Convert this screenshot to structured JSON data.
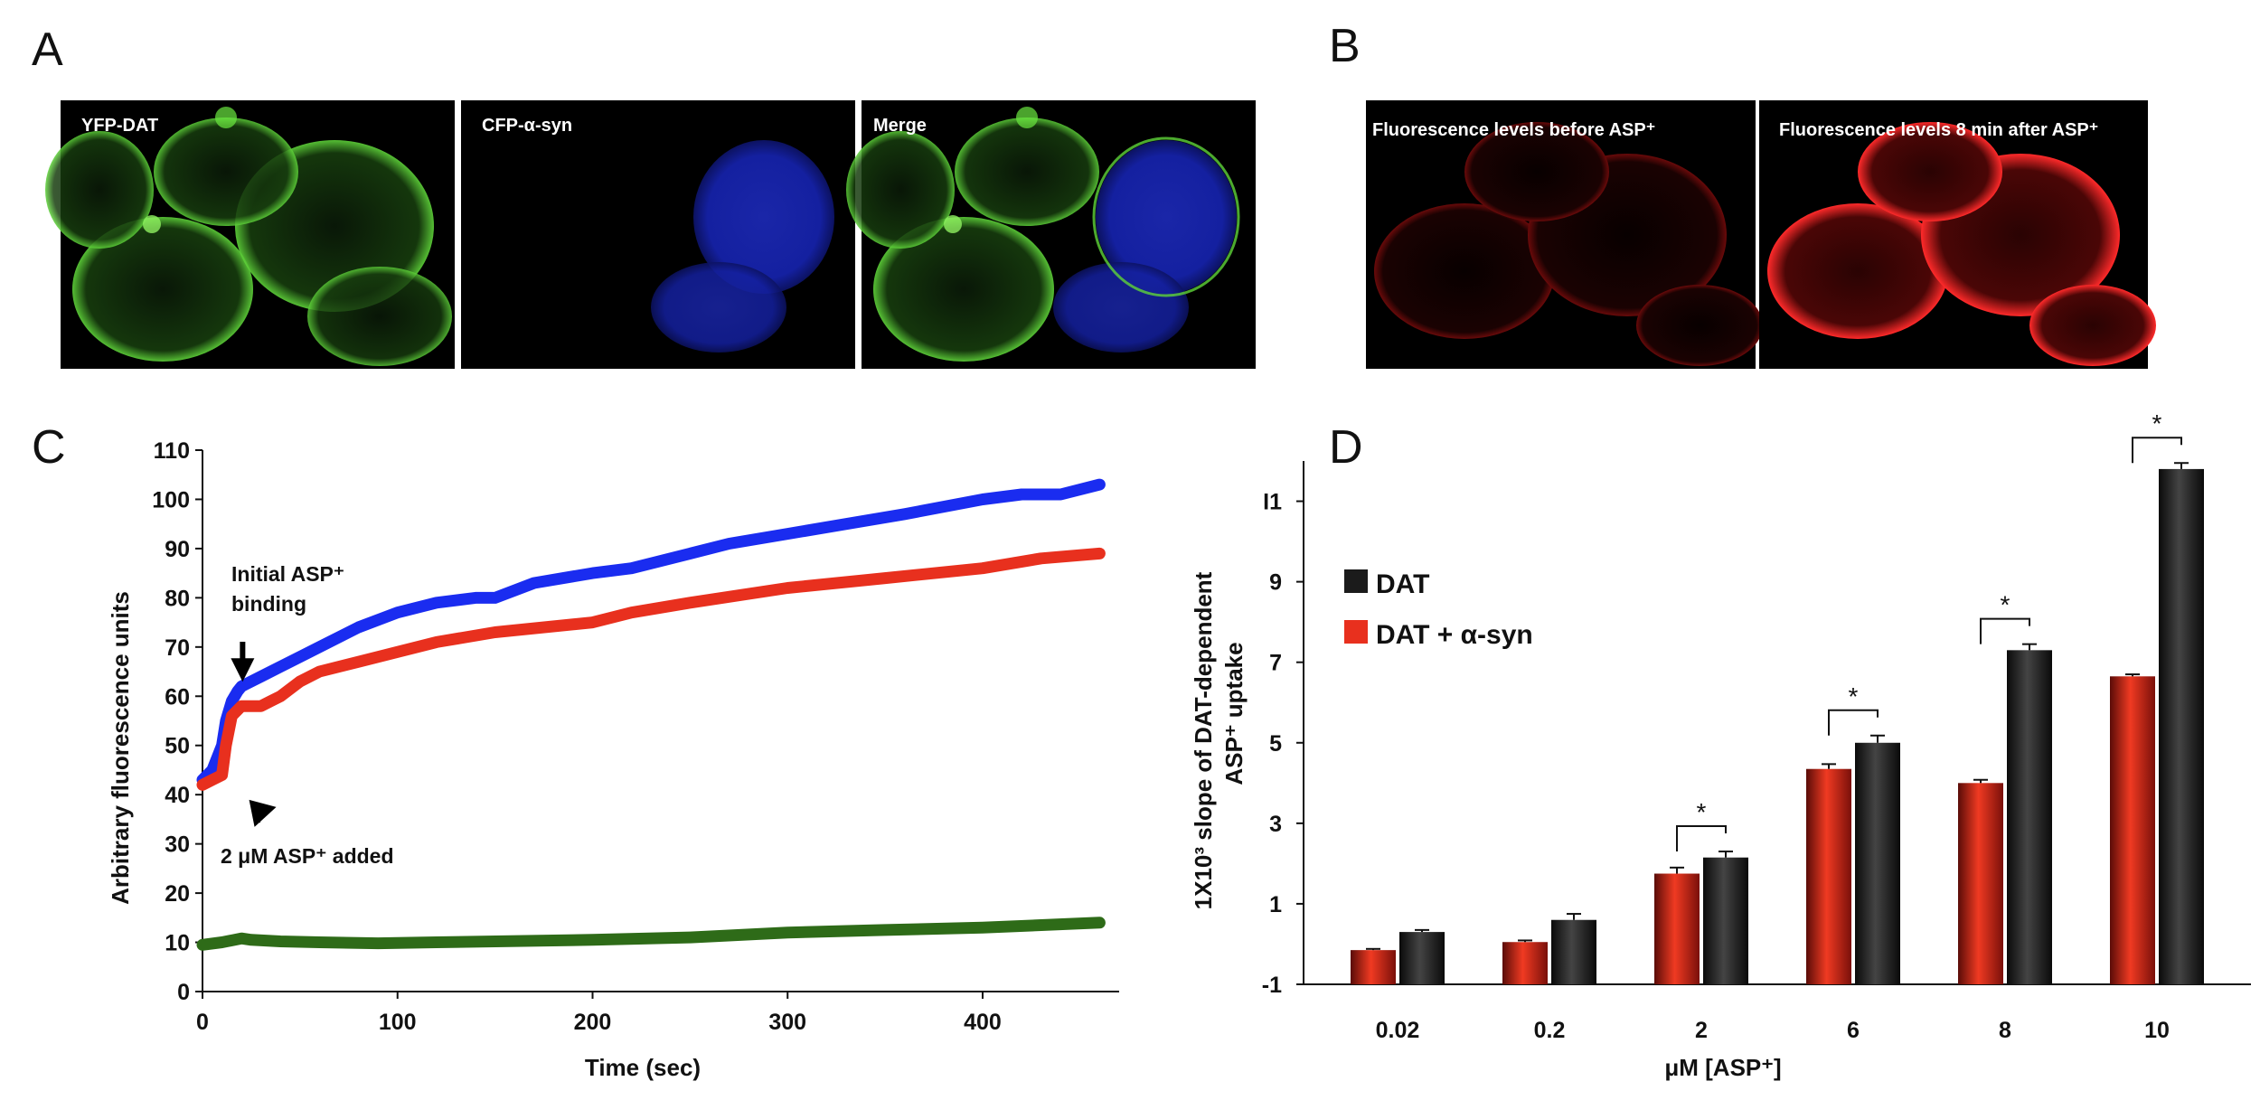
{
  "panels": {
    "a": {
      "letter": "A",
      "images": [
        {
          "label": "YFP-DAT",
          "channel": "green"
        },
        {
          "label": "CFP-α-syn",
          "channel": "blue"
        },
        {
          "label": "Merge",
          "channel": "merge"
        }
      ]
    },
    "b": {
      "letter": "B",
      "images": [
        {
          "label": "Fluorescence levels before ASP⁺",
          "channel": "red-dim"
        },
        {
          "label": "Fluorescence levels 8 min after ASP⁺",
          "channel": "red-bright"
        }
      ]
    },
    "c": {
      "letter": "C"
    },
    "d": {
      "letter": "D"
    }
  },
  "chart_data": [
    {
      "id": "C",
      "type": "line",
      "xlabel": "Time (sec)",
      "ylabel": "Arbitrary fluorescence units",
      "xlim": [
        0,
        470
      ],
      "ylim": [
        0,
        110
      ],
      "xticks": [
        0,
        100,
        200,
        300,
        400
      ],
      "yticks": [
        0,
        10,
        20,
        30,
        40,
        50,
        60,
        70,
        80,
        90,
        100,
        110
      ],
      "grid": false,
      "series": [
        {
          "color": "#1a2cf0",
          "x": [
            0,
            5,
            10,
            12,
            15,
            18,
            20,
            25,
            30,
            40,
            50,
            60,
            80,
            100,
            120,
            140,
            150,
            170,
            200,
            220,
            250,
            270,
            300,
            330,
            360,
            400,
            420,
            440,
            460
          ],
          "y": [
            43,
            45,
            50,
            55,
            59,
            61,
            62,
            63,
            64,
            66,
            68,
            70,
            74,
            77,
            79,
            80,
            80,
            83,
            85,
            86,
            89,
            91,
            93,
            95,
            97,
            100,
            101,
            101,
            103
          ]
        },
        {
          "color": "#e8301e",
          "x": [
            0,
            5,
            10,
            12,
            15,
            20,
            25,
            30,
            35,
            40,
            50,
            60,
            80,
            100,
            120,
            150,
            200,
            220,
            250,
            300,
            350,
            400,
            430,
            460
          ],
          "y": [
            42,
            43,
            44,
            50,
            56,
            58,
            58,
            58,
            59,
            60,
            63,
            65,
            67,
            69,
            71,
            73,
            75,
            77,
            79,
            82,
            84,
            86,
            88,
            89
          ]
        },
        {
          "color": "#2e6b18",
          "x": [
            0,
            10,
            20,
            25,
            40,
            60,
            90,
            120,
            200,
            250,
            300,
            350,
            400,
            430,
            460
          ],
          "y": [
            9.5,
            10,
            10.8,
            10.5,
            10.2,
            10,
            9.8,
            10,
            10.5,
            11,
            12,
            12.5,
            13,
            13.5,
            14
          ]
        }
      ],
      "annotations": [
        {
          "lines": [
            "Initial ASP⁺",
            "binding"
          ],
          "x": 15,
          "y": 60
        },
        {
          "lines": [
            "2 μM ASP⁺ added"
          ],
          "x": 10,
          "y": 43
        }
      ]
    },
    {
      "id": "D",
      "type": "bar",
      "categories": [
        "0.02",
        "0.2",
        "2",
        "6",
        "8",
        "10"
      ],
      "xlabel": "μM [ASP⁺]",
      "ylabel_lines": [
        "1X10³  slope of DAT-dependent",
        "ASP⁺ uptake"
      ],
      "ylim": [
        -1,
        12
      ],
      "ytick_labels": [
        "-1",
        "1",
        "3",
        "5",
        "7",
        "9",
        "I1"
      ],
      "ytick_values": [
        -1,
        1,
        3,
        5,
        7,
        9,
        11
      ],
      "series": [
        {
          "name": "DAT + α-syn",
          "color": "#e8301e",
          "values": [
            -0.15,
            0.05,
            1.75,
            4.35,
            4.0,
            6.65
          ],
          "errors": [
            0.03,
            0.04,
            0.15,
            0.12,
            0.08,
            0.05
          ]
        },
        {
          "name": "DAT",
          "color": "#1b1b1b",
          "values": [
            0.3,
            0.6,
            2.15,
            5.0,
            7.3,
            11.8
          ],
          "errors": [
            0.05,
            0.15,
            0.15,
            0.18,
            0.15,
            0.15
          ]
        }
      ],
      "legend": {
        "position": "top-left",
        "order": [
          "DAT",
          "DAT + α-syn"
        ]
      },
      "significance": [
        {
          "category": "2",
          "label": "*"
        },
        {
          "category": "6",
          "label": "*"
        },
        {
          "category": "8",
          "label": "*"
        },
        {
          "category": "10",
          "label": "*"
        }
      ]
    }
  ]
}
